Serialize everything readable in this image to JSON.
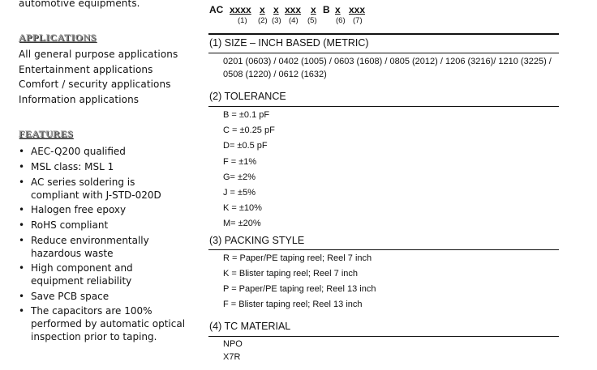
{
  "left": {
    "intro_tail": "automotive equipments.",
    "applications": {
      "heading": "APPLICATIONS",
      "items": [
        "All general purpose applications",
        "Entertainment applications",
        "Comfort / security applications",
        "Information applications"
      ]
    },
    "features": {
      "heading": "FEATURES",
      "items": [
        [
          "AEC-Q200 qualified"
        ],
        [
          "MSL class: MSL 1"
        ],
        [
          "AC series soldering is",
          "compliant with J-STD-020D"
        ],
        [
          "Halogen free epoxy"
        ],
        [
          "RoHS compliant"
        ],
        [
          "Reduce environmentally",
          "hazardous waste"
        ],
        [
          "High component and",
          "equipment reliability"
        ],
        [
          "Save PCB space"
        ],
        [
          "The capacitors are 100%",
          "performed by automatic optical",
          "inspection prior to taping."
        ]
      ]
    }
  },
  "part_number": {
    "prefix": "AC",
    "fields": [
      "xxxx",
      "x",
      "x",
      "xxx",
      "x",
      "B",
      "x",
      "xxx"
    ],
    "numbers": [
      "(1)",
      "(2)",
      "(3)",
      "(4)",
      "(5)",
      "(6)",
      "(7)"
    ]
  },
  "sections": {
    "size": {
      "heading": "(1) SIZE – INCH BASED (METRIC)",
      "lines": [
        "0201 (0603) / 0402 (1005) / 0603 (1608) / 0805 (2012) / 1206 (3216)/ 1210 (3225) /",
        "0508 (1220) / 0612 (1632)"
      ]
    },
    "tolerance": {
      "heading": "(2) TOLERANCE",
      "items": [
        "B = ±0.1 pF",
        "C = ±0.25 pF",
        "D= ±0.5 pF",
        "F = ±1%",
        "G= ±2%",
        "J = ±5%",
        "K = ±10%",
        "M= ±20%"
      ]
    },
    "packing": {
      "heading": "(3) PACKING STYLE",
      "items": [
        "R = Paper/PE taping reel; Reel 7 inch",
        "K = Blister taping reel; Reel 7 inch",
        "P = Paper/PE taping reel; Reel 13 inch",
        "F = Blister taping reel; Reel 13 inch"
      ]
    },
    "tc": {
      "heading": "(4) TC MATERIAL",
      "items": [
        "NPO",
        "X7R"
      ]
    }
  }
}
